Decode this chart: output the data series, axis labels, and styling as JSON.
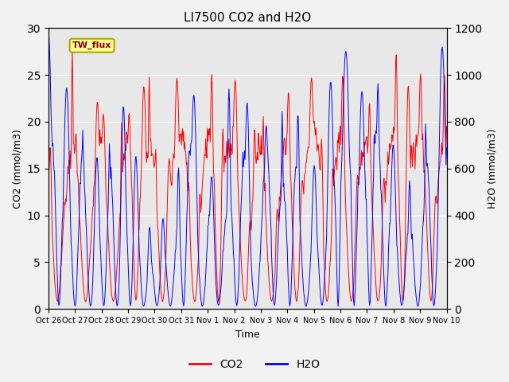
{
  "title": "LI7500 CO2 and H2O",
  "xlabel": "Time",
  "ylabel_left": "CO2 (mmol/m3)",
  "ylabel_right": "H2O (mmol/m3)",
  "annotation_text": "TW_flux",
  "co2_color": "#FF0000",
  "h2o_color": "#0000FF",
  "ylim_left": [
    0,
    30
  ],
  "ylim_right": [
    0,
    1200
  ],
  "fig_facecolor": "#F2F2F2",
  "axes_facecolor": "#E8E8E8",
  "x_tick_labels": [
    "Oct 26",
    "Oct 27",
    "Oct 28",
    "Oct 29",
    "Oct 30",
    "Oct 31",
    "Nov 1",
    "Nov 2",
    "Nov 3",
    "Nov 4",
    "Nov 5",
    "Nov 6",
    "Nov 7",
    "Nov 8",
    "Nov 9",
    "Nov 10"
  ],
  "num_days": 15,
  "seed": 12345
}
